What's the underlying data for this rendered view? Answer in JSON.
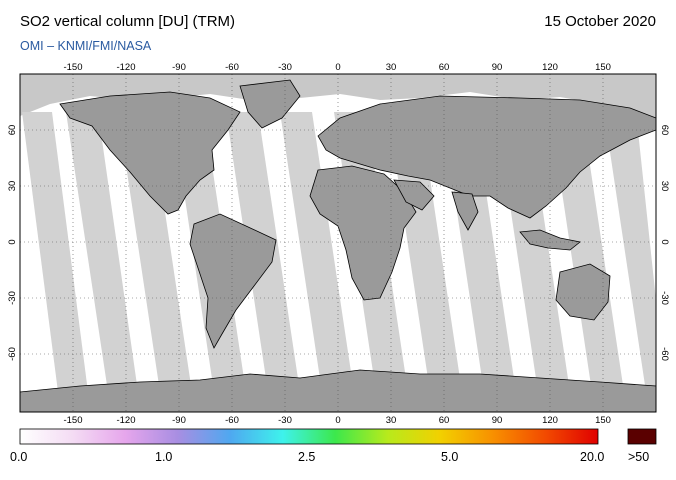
{
  "header": {
    "title": "SO2 vertical column [DU] (TRM)",
    "date": "15 October 2020",
    "credit": "OMI  –  KNMI/FMI/NASA"
  },
  "map": {
    "lon_ticks": [
      "-150",
      "-120",
      "-90",
      "-60",
      "-30",
      "0",
      "30",
      "60",
      "90",
      "120",
      "150"
    ],
    "lat_ticks_left": [
      "60",
      "30",
      "0",
      "-30",
      "-60"
    ],
    "lat_ticks_right": [
      "60",
      "30",
      "0",
      "-30",
      "-60"
    ],
    "grid": "dotted every 30 degrees",
    "ocean_color": "#ffffff",
    "land_color": "#9a9a9a",
    "swath_color": "#cfcfcf",
    "no_data_color": "#c8c8c8"
  },
  "colorbar": {
    "labels": [
      "0.0",
      "1.0",
      "2.5",
      "5.0",
      "20.0"
    ],
    "overflow_label": ">50",
    "overflow_color": "#5a0000",
    "colors": [
      "#ffffff",
      "#f4dcf4",
      "#e6a6ec",
      "#a88ee2",
      "#4fa8f0",
      "#3ef2ec",
      "#3ce84c",
      "#b8ea1c",
      "#f2d000",
      "#f89000",
      "#f24a00",
      "#e00000"
    ]
  }
}
